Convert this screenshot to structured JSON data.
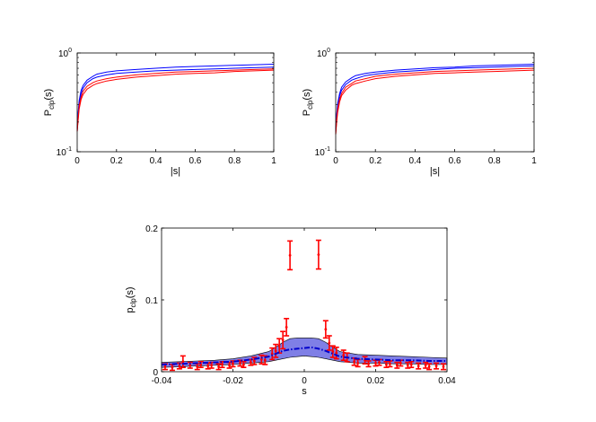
{
  "chart_data": [
    {
      "type": "line",
      "xlabel": "|s|",
      "ylabel": "P",
      "ylabel_sub": "clp",
      "ylabel_suffix": "(s)",
      "xlim": [
        0,
        1
      ],
      "ylim": [
        0.1,
        1
      ],
      "yscale": "log",
      "xticks": [
        "0",
        "0.2",
        "0.4",
        "0.6",
        "0.8",
        "1"
      ],
      "yticks": [
        {
          "base": "10",
          "exp": "-1",
          "value": 0.1
        },
        {
          "base": "10",
          "exp": "0",
          "value": 1
        }
      ],
      "grid": false,
      "colors": [
        "#0000ff",
        "#0000ff",
        "#ff0000",
        "#ff0000"
      ],
      "series": [
        {
          "x": [
            0,
            0.005,
            0.01,
            0.02,
            0.03,
            0.05,
            0.08,
            0.1,
            0.15,
            0.2,
            0.3,
            0.4,
            0.5,
            0.6,
            0.7,
            0.8,
            0.9,
            1.0
          ],
          "values": [
            0.17,
            0.25,
            0.33,
            0.42,
            0.47,
            0.53,
            0.58,
            0.61,
            0.64,
            0.66,
            0.68,
            0.7,
            0.72,
            0.73,
            0.74,
            0.75,
            0.76,
            0.77
          ]
        },
        {
          "x": [
            0,
            0.005,
            0.01,
            0.02,
            0.03,
            0.05,
            0.08,
            0.1,
            0.15,
            0.2,
            0.3,
            0.4,
            0.5,
            0.6,
            0.7,
            0.8,
            0.9,
            1.0
          ],
          "values": [
            0.16,
            0.24,
            0.31,
            0.39,
            0.44,
            0.5,
            0.55,
            0.57,
            0.6,
            0.62,
            0.64,
            0.66,
            0.67,
            0.68,
            0.69,
            0.7,
            0.71,
            0.72
          ]
        },
        {
          "x": [
            0,
            0.005,
            0.01,
            0.02,
            0.03,
            0.05,
            0.08,
            0.1,
            0.15,
            0.2,
            0.3,
            0.4,
            0.5,
            0.6,
            0.7,
            0.8,
            0.9,
            1.0
          ],
          "values": [
            0.16,
            0.22,
            0.29,
            0.36,
            0.41,
            0.46,
            0.5,
            0.52,
            0.55,
            0.57,
            0.6,
            0.62,
            0.64,
            0.65,
            0.66,
            0.67,
            0.68,
            0.69
          ]
        },
        {
          "x": [
            0,
            0.005,
            0.01,
            0.02,
            0.03,
            0.05,
            0.08,
            0.1,
            0.15,
            0.2,
            0.3,
            0.4,
            0.5,
            0.6,
            0.7,
            0.8,
            0.9,
            1.0
          ],
          "values": [
            0.16,
            0.21,
            0.27,
            0.34,
            0.38,
            0.43,
            0.47,
            0.49,
            0.52,
            0.54,
            0.57,
            0.59,
            0.61,
            0.62,
            0.63,
            0.65,
            0.66,
            0.67
          ]
        }
      ]
    },
    {
      "type": "line",
      "xlabel": "|s|",
      "ylabel": "P",
      "ylabel_sub": "clp",
      "ylabel_suffix": "(s)",
      "xlim": [
        0,
        1
      ],
      "ylim": [
        0.1,
        1
      ],
      "yscale": "log",
      "xticks": [
        "0",
        "0.2",
        "0.4",
        "0.6",
        "0.8",
        "1"
      ],
      "yticks": [
        {
          "base": "10",
          "exp": "-1",
          "value": 0.1
        },
        {
          "base": "10",
          "exp": "0",
          "value": 1
        }
      ],
      "grid": false,
      "colors": [
        "#0000ff",
        "#0000ff",
        "#ff0000",
        "#ff0000"
      ],
      "series": [
        {
          "x": [
            0,
            0.005,
            0.01,
            0.02,
            0.03,
            0.05,
            0.08,
            0.1,
            0.15,
            0.2,
            0.3,
            0.4,
            0.5,
            0.6,
            0.7,
            0.8,
            0.9,
            1.0
          ],
          "values": [
            0.17,
            0.24,
            0.31,
            0.39,
            0.45,
            0.51,
            0.56,
            0.59,
            0.62,
            0.64,
            0.67,
            0.69,
            0.71,
            0.72,
            0.74,
            0.75,
            0.76,
            0.77
          ]
        },
        {
          "x": [
            0,
            0.005,
            0.01,
            0.02,
            0.03,
            0.05,
            0.08,
            0.1,
            0.15,
            0.2,
            0.3,
            0.4,
            0.5,
            0.6,
            0.7,
            0.8,
            0.9,
            1.0
          ],
          "values": [
            0.16,
            0.23,
            0.29,
            0.37,
            0.42,
            0.48,
            0.53,
            0.55,
            0.59,
            0.61,
            0.64,
            0.66,
            0.68,
            0.7,
            0.71,
            0.72,
            0.73,
            0.74
          ]
        },
        {
          "x": [
            0,
            0.005,
            0.01,
            0.02,
            0.03,
            0.05,
            0.08,
            0.1,
            0.15,
            0.2,
            0.3,
            0.4,
            0.5,
            0.6,
            0.7,
            0.8,
            0.9,
            1.0
          ],
          "values": [
            0.15,
            0.21,
            0.27,
            0.34,
            0.39,
            0.45,
            0.49,
            0.52,
            0.55,
            0.58,
            0.61,
            0.63,
            0.65,
            0.66,
            0.67,
            0.68,
            0.69,
            0.7
          ]
        },
        {
          "x": [
            0,
            0.005,
            0.01,
            0.02,
            0.03,
            0.05,
            0.08,
            0.1,
            0.15,
            0.2,
            0.3,
            0.4,
            0.5,
            0.6,
            0.7,
            0.8,
            0.9,
            1.0
          ],
          "values": [
            0.15,
            0.2,
            0.25,
            0.32,
            0.37,
            0.42,
            0.47,
            0.49,
            0.52,
            0.55,
            0.58,
            0.6,
            0.62,
            0.63,
            0.64,
            0.65,
            0.66,
            0.67
          ]
        }
      ]
    },
    {
      "type": "line",
      "xlabel": "s",
      "ylabel": "p",
      "ylabel_sub": "clp",
      "ylabel_suffix": "(s)",
      "xlim": [
        -0.04,
        0.04
      ],
      "ylim": [
        0,
        0.2
      ],
      "xticks": [
        "-0.04",
        "-0.02",
        "0",
        "0.02",
        "0.04"
      ],
      "yticks": [
        "0",
        "0.1",
        "0.2"
      ],
      "grid": false,
      "colors": {
        "mean": "#0000cc",
        "band": "#7f7fe6",
        "errorbars": "#ff0000"
      },
      "band": {
        "x": [
          -0.04,
          -0.035,
          -0.03,
          -0.025,
          -0.02,
          -0.015,
          -0.01,
          -0.008,
          -0.006,
          -0.004,
          -0.002,
          0,
          0.002,
          0.004,
          0.006,
          0.008,
          0.01,
          0.015,
          0.02,
          0.025,
          0.03,
          0.035,
          0.04
        ],
        "lower": [
          0.006,
          0.007,
          0.008,
          0.009,
          0.01,
          0.012,
          0.014,
          0.016,
          0.018,
          0.02,
          0.021,
          0.022,
          0.021,
          0.02,
          0.018,
          0.016,
          0.014,
          0.012,
          0.012,
          0.011,
          0.011,
          0.01,
          0.01
        ],
        "upper": [
          0.013,
          0.014,
          0.015,
          0.016,
          0.018,
          0.022,
          0.028,
          0.034,
          0.041,
          0.046,
          0.047,
          0.047,
          0.047,
          0.046,
          0.041,
          0.034,
          0.028,
          0.024,
          0.023,
          0.022,
          0.021,
          0.02,
          0.019
        ]
      },
      "mean": {
        "x": [
          -0.04,
          -0.035,
          -0.03,
          -0.025,
          -0.02,
          -0.015,
          -0.01,
          -0.008,
          -0.006,
          -0.004,
          -0.002,
          0,
          0.002,
          0.004,
          0.006,
          0.008,
          0.01,
          0.015,
          0.02,
          0.025,
          0.03,
          0.035,
          0.04
        ],
        "values": [
          0.01,
          0.011,
          0.012,
          0.013,
          0.014,
          0.017,
          0.021,
          0.025,
          0.029,
          0.031,
          0.032,
          0.033,
          0.034,
          0.032,
          0.029,
          0.025,
          0.021,
          0.018,
          0.017,
          0.016,
          0.016,
          0.015,
          0.015
        ]
      },
      "errorbars": {
        "x": [
          -0.039,
          -0.037,
          -0.035,
          -0.034,
          -0.032,
          -0.03,
          -0.029,
          -0.027,
          -0.026,
          -0.024,
          -0.023,
          -0.021,
          -0.02,
          -0.018,
          -0.017,
          -0.015,
          -0.014,
          -0.012,
          -0.011,
          -0.009,
          -0.008,
          -0.007,
          -0.006,
          -0.005,
          -0.004,
          0.004,
          0.006,
          0.007,
          0.008,
          0.009,
          0.011,
          0.012,
          0.014,
          0.015,
          0.017,
          0.018,
          0.02,
          0.021,
          0.023,
          0.024,
          0.026,
          0.027,
          0.029,
          0.03,
          0.032,
          0.034,
          0.035,
          0.037,
          0.039
        ],
        "y": [
          0.007,
          0.006,
          0.008,
          0.014,
          0.009,
          0.007,
          0.01,
          0.008,
          0.009,
          0.007,
          0.01,
          0.009,
          0.011,
          0.012,
          0.01,
          0.013,
          0.015,
          0.017,
          0.016,
          0.025,
          0.029,
          0.036,
          0.044,
          0.062,
          0.162,
          0.163,
          0.059,
          0.04,
          0.028,
          0.026,
          0.023,
          0.02,
          0.014,
          0.012,
          0.016,
          0.011,
          0.012,
          0.013,
          0.01,
          0.011,
          0.009,
          0.012,
          0.009,
          0.01,
          0.008,
          0.009,
          0.007,
          0.008,
          0.007
        ],
        "err": [
          0.004,
          0.004,
          0.004,
          0.008,
          0.004,
          0.004,
          0.004,
          0.004,
          0.004,
          0.004,
          0.004,
          0.004,
          0.004,
          0.004,
          0.004,
          0.004,
          0.005,
          0.006,
          0.006,
          0.008,
          0.009,
          0.01,
          0.012,
          0.012,
          0.02,
          0.02,
          0.012,
          0.01,
          0.008,
          0.008,
          0.007,
          0.006,
          0.005,
          0.005,
          0.005,
          0.004,
          0.004,
          0.004,
          0.004,
          0.004,
          0.004,
          0.004,
          0.004,
          0.004,
          0.004,
          0.004,
          0.004,
          0.004,
          0.004
        ]
      }
    }
  ]
}
